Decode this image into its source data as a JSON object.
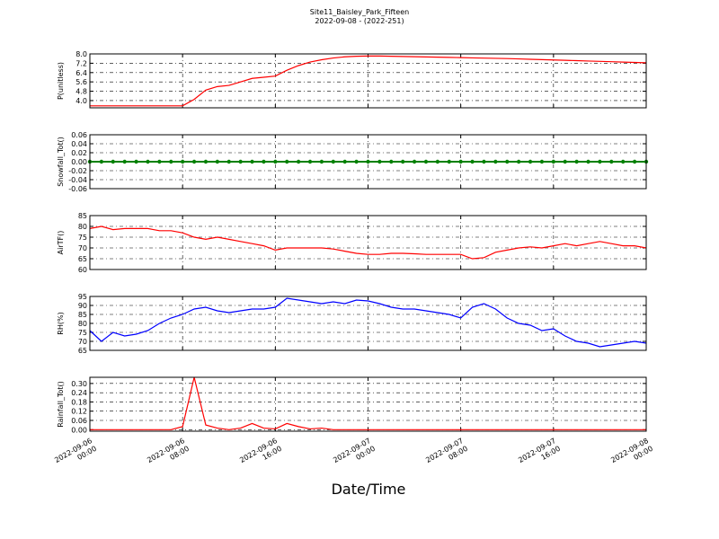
{
  "chart_data": [
    {
      "type": "line",
      "title": "Site11_Baisley_Park_Fifteen",
      "subtitle": "2022-09-08 - (2022-251)",
      "ylabel": "P(unitless)",
      "x": [
        "2022-09-06 00:00",
        "2022-09-06 01:00",
        "2022-09-06 02:00",
        "2022-09-06 03:00",
        "2022-09-06 04:00",
        "2022-09-06 05:00",
        "2022-09-06 06:00",
        "2022-09-06 07:00",
        "2022-09-06 08:00",
        "2022-09-06 09:00",
        "2022-09-06 10:00",
        "2022-09-06 11:00",
        "2022-09-06 12:00",
        "2022-09-06 13:00",
        "2022-09-06 14:00",
        "2022-09-06 15:00",
        "2022-09-06 16:00",
        "2022-09-06 17:00",
        "2022-09-06 18:00",
        "2022-09-06 19:00",
        "2022-09-06 20:00",
        "2022-09-06 21:00",
        "2022-09-06 22:00",
        "2022-09-06 23:00",
        "2022-09-07 00:00",
        "2022-09-07 01:00",
        "2022-09-07 02:00",
        "2022-09-07 03:00",
        "2022-09-07 04:00",
        "2022-09-07 05:00",
        "2022-09-07 06:00",
        "2022-09-07 07:00",
        "2022-09-07 08:00",
        "2022-09-07 09:00",
        "2022-09-07 10:00",
        "2022-09-07 11:00",
        "2022-09-07 12:00",
        "2022-09-07 13:00",
        "2022-09-07 14:00",
        "2022-09-07 15:00",
        "2022-09-07 16:00",
        "2022-09-07 17:00",
        "2022-09-07 18:00",
        "2022-09-07 19:00",
        "2022-09-07 20:00",
        "2022-09-07 21:00",
        "2022-09-07 22:00",
        "2022-09-07 23:00",
        "2022-09-08 00:00"
      ],
      "xlim": [
        "2022-09-06 00:00",
        "2022-09-08 00:00"
      ],
      "ylim": [
        3.38,
        8.0
      ],
      "yticks": [
        {
          "value": 4,
          "label": "4.0"
        },
        4.8,
        5.6,
        6.4,
        7.2,
        {
          "value": 8,
          "label": "8.0"
        }
      ],
      "grid": true,
      "color": "#ff0000",
      "values": [
        3.55,
        3.55,
        3.55,
        3.55,
        3.55,
        3.55,
        3.55,
        3.55,
        3.55,
        4.1,
        4.9,
        5.2,
        5.3,
        5.6,
        5.9,
        6.0,
        6.1,
        6.6,
        7.0,
        7.3,
        7.5,
        7.65,
        7.75,
        7.8,
        7.82,
        7.82,
        7.8,
        7.78,
        7.76,
        7.74,
        7.72,
        7.7,
        7.68,
        7.66,
        7.64,
        7.62,
        7.6,
        7.57,
        7.54,
        7.51,
        7.48,
        7.45,
        7.42,
        7.39,
        7.36,
        7.33,
        7.3,
        7.27,
        7.24
      ]
    },
    {
      "type": "line",
      "ylabel": "Snowfall_Tot()",
      "x": [
        "2022-09-06 00:00",
        "2022-09-06 01:00",
        "2022-09-06 02:00",
        "2022-09-06 03:00",
        "2022-09-06 04:00",
        "2022-09-06 05:00",
        "2022-09-06 06:00",
        "2022-09-06 07:00",
        "2022-09-06 08:00",
        "2022-09-06 09:00",
        "2022-09-06 10:00",
        "2022-09-06 11:00",
        "2022-09-06 12:00",
        "2022-09-06 13:00",
        "2022-09-06 14:00",
        "2022-09-06 15:00",
        "2022-09-06 16:00",
        "2022-09-06 17:00",
        "2022-09-06 18:00",
        "2022-09-06 19:00",
        "2022-09-06 20:00",
        "2022-09-06 21:00",
        "2022-09-06 22:00",
        "2022-09-06 23:00",
        "2022-09-07 00:00",
        "2022-09-07 01:00",
        "2022-09-07 02:00",
        "2022-09-07 03:00",
        "2022-09-07 04:00",
        "2022-09-07 05:00",
        "2022-09-07 06:00",
        "2022-09-07 07:00",
        "2022-09-07 08:00",
        "2022-09-07 09:00",
        "2022-09-07 10:00",
        "2022-09-07 11:00",
        "2022-09-07 12:00",
        "2022-09-07 13:00",
        "2022-09-07 14:00",
        "2022-09-07 15:00",
        "2022-09-07 16:00",
        "2022-09-07 17:00",
        "2022-09-07 18:00",
        "2022-09-07 19:00",
        "2022-09-07 20:00",
        "2022-09-07 21:00",
        "2022-09-07 22:00",
        "2022-09-07 23:00",
        "2022-09-08 00:00"
      ],
      "xlim": [
        "2022-09-06 00:00",
        "2022-09-08 00:00"
      ],
      "ylim": [
        -0.06,
        0.06
      ],
      "yticks": [
        -0.06,
        -0.04,
        -0.02,
        {
          "value": 0,
          "label": "0.00"
        },
        0.02,
        0.04,
        0.06
      ],
      "grid": true,
      "color": "#008000",
      "marker": "o",
      "values": [
        0,
        0,
        0,
        0,
        0,
        0,
        0,
        0,
        0,
        0,
        0,
        0,
        0,
        0,
        0,
        0,
        0,
        0,
        0,
        0,
        0,
        0,
        0,
        0,
        0,
        0,
        0,
        0,
        0,
        0,
        0,
        0,
        0,
        0,
        0,
        0,
        0,
        0,
        0,
        0,
        0,
        0,
        0,
        0,
        0,
        0,
        0,
        0,
        0
      ]
    },
    {
      "type": "line",
      "ylabel": "AirTF()",
      "x": [
        "2022-09-06 00:00",
        "2022-09-06 01:00",
        "2022-09-06 02:00",
        "2022-09-06 03:00",
        "2022-09-06 04:00",
        "2022-09-06 05:00",
        "2022-09-06 06:00",
        "2022-09-06 07:00",
        "2022-09-06 08:00",
        "2022-09-06 09:00",
        "2022-09-06 10:00",
        "2022-09-06 11:00",
        "2022-09-06 12:00",
        "2022-09-06 13:00",
        "2022-09-06 14:00",
        "2022-09-06 15:00",
        "2022-09-06 16:00",
        "2022-09-06 17:00",
        "2022-09-06 18:00",
        "2022-09-06 19:00",
        "2022-09-06 20:00",
        "2022-09-06 21:00",
        "2022-09-06 22:00",
        "2022-09-06 23:00",
        "2022-09-07 00:00",
        "2022-09-07 01:00",
        "2022-09-07 02:00",
        "2022-09-07 03:00",
        "2022-09-07 04:00",
        "2022-09-07 05:00",
        "2022-09-07 06:00",
        "2022-09-07 07:00",
        "2022-09-07 08:00",
        "2022-09-07 09:00",
        "2022-09-07 10:00",
        "2022-09-07 11:00",
        "2022-09-07 12:00",
        "2022-09-07 13:00",
        "2022-09-07 14:00",
        "2022-09-07 15:00",
        "2022-09-07 16:00",
        "2022-09-07 17:00",
        "2022-09-07 18:00",
        "2022-09-07 19:00",
        "2022-09-07 20:00",
        "2022-09-07 21:00",
        "2022-09-07 22:00",
        "2022-09-07 23:00",
        "2022-09-08 00:00"
      ],
      "xlim": [
        "2022-09-06 00:00",
        "2022-09-08 00:00"
      ],
      "ylim": [
        60,
        85
      ],
      "yticks": [
        60,
        65,
        70,
        75,
        80,
        85
      ],
      "grid": true,
      "color": "#ff0000",
      "values": [
        79,
        80,
        78.5,
        79,
        79,
        79,
        78,
        78,
        77,
        75,
        74,
        75,
        74,
        73,
        72,
        71,
        69,
        70,
        70,
        70,
        70,
        69.5,
        68.5,
        67.5,
        67,
        67,
        67.5,
        67.5,
        67.3,
        67,
        67,
        67,
        67,
        65,
        65.5,
        68,
        69,
        70,
        70.5,
        70,
        71,
        72,
        71,
        72,
        73,
        72,
        71,
        71,
        70
      ]
    },
    {
      "type": "line",
      "ylabel": "RH(%)",
      "x": [
        "2022-09-06 00:00",
        "2022-09-06 01:00",
        "2022-09-06 02:00",
        "2022-09-06 03:00",
        "2022-09-06 04:00",
        "2022-09-06 05:00",
        "2022-09-06 06:00",
        "2022-09-06 07:00",
        "2022-09-06 08:00",
        "2022-09-06 09:00",
        "2022-09-06 10:00",
        "2022-09-06 11:00",
        "2022-09-06 12:00",
        "2022-09-06 13:00",
        "2022-09-06 14:00",
        "2022-09-06 15:00",
        "2022-09-06 16:00",
        "2022-09-06 17:00",
        "2022-09-06 18:00",
        "2022-09-06 19:00",
        "2022-09-06 20:00",
        "2022-09-06 21:00",
        "2022-09-06 22:00",
        "2022-09-06 23:00",
        "2022-09-07 00:00",
        "2022-09-07 01:00",
        "2022-09-07 02:00",
        "2022-09-07 03:00",
        "2022-09-07 04:00",
        "2022-09-07 05:00",
        "2022-09-07 06:00",
        "2022-09-07 07:00",
        "2022-09-07 08:00",
        "2022-09-07 09:00",
        "2022-09-07 10:00",
        "2022-09-07 11:00",
        "2022-09-07 12:00",
        "2022-09-07 13:00",
        "2022-09-07 14:00",
        "2022-09-07 15:00",
        "2022-09-07 16:00",
        "2022-09-07 17:00",
        "2022-09-07 18:00",
        "2022-09-07 19:00",
        "2022-09-07 20:00",
        "2022-09-07 21:00",
        "2022-09-07 22:00",
        "2022-09-07 23:00",
        "2022-09-08 00:00"
      ],
      "xlim": [
        "2022-09-06 00:00",
        "2022-09-08 00:00"
      ],
      "ylim": [
        65,
        95
      ],
      "yticks": [
        65,
        70,
        75,
        80,
        85,
        90,
        95
      ],
      "grid": true,
      "color": "#0000ff",
      "values": [
        76,
        70,
        75,
        73,
        74,
        76,
        80,
        83,
        85,
        88,
        89,
        87,
        86,
        87,
        88,
        88,
        89,
        94,
        93,
        92,
        91,
        92,
        91,
        93,
        92.5,
        91,
        89,
        88,
        88,
        87,
        86,
        85,
        83,
        89,
        91,
        88,
        83,
        80,
        79,
        76,
        77,
        73,
        70,
        69,
        67,
        68,
        69,
        70,
        69
      ]
    },
    {
      "type": "line",
      "ylabel": "Rainfall_Tot()",
      "xlabel": "Date/Time",
      "x": [
        "2022-09-06 00:00",
        "2022-09-06 01:00",
        "2022-09-06 02:00",
        "2022-09-06 03:00",
        "2022-09-06 04:00",
        "2022-09-06 05:00",
        "2022-09-06 06:00",
        "2022-09-06 07:00",
        "2022-09-06 08:00",
        "2022-09-06 09:00",
        "2022-09-06 10:00",
        "2022-09-06 11:00",
        "2022-09-06 12:00",
        "2022-09-06 13:00",
        "2022-09-06 14:00",
        "2022-09-06 15:00",
        "2022-09-06 16:00",
        "2022-09-06 17:00",
        "2022-09-06 18:00",
        "2022-09-06 19:00",
        "2022-09-06 20:00",
        "2022-09-06 21:00",
        "2022-09-06 22:00",
        "2022-09-06 23:00",
        "2022-09-07 00:00",
        "2022-09-07 01:00",
        "2022-09-07 02:00",
        "2022-09-07 03:00",
        "2022-09-07 04:00",
        "2022-09-07 05:00",
        "2022-09-07 06:00",
        "2022-09-07 07:00",
        "2022-09-07 08:00",
        "2022-09-07 09:00",
        "2022-09-07 10:00",
        "2022-09-07 11:00",
        "2022-09-07 12:00",
        "2022-09-07 13:00",
        "2022-09-07 14:00",
        "2022-09-07 15:00",
        "2022-09-07 16:00",
        "2022-09-07 17:00",
        "2022-09-07 18:00",
        "2022-09-07 19:00",
        "2022-09-07 20:00",
        "2022-09-07 21:00",
        "2022-09-07 22:00",
        "2022-09-07 23:00",
        "2022-09-08 00:00"
      ],
      "xlim": [
        "2022-09-06 00:00",
        "2022-09-08 00:00"
      ],
      "xticks": [
        {
          "value": "2022-09-06 00:00",
          "label": "2022-09-06\n00:00"
        },
        {
          "value": "2022-09-06 08:00",
          "label": "2022-09-06\n08:00"
        },
        {
          "value": "2022-09-06 16:00",
          "label": "2022-09-06\n16:00"
        },
        {
          "value": "2022-09-07 00:00",
          "label": "2022-09-07\n00:00"
        },
        {
          "value": "2022-09-07 08:00",
          "label": "2022-09-07\n08:00"
        },
        {
          "value": "2022-09-07 16:00",
          "label": "2022-09-07\n16:00"
        },
        {
          "value": "2022-09-08 00:00",
          "label": "2022-09-08\n00:00"
        }
      ],
      "ylim": [
        -0.01,
        0.34
      ],
      "yticks": [
        {
          "value": 0,
          "label": "0.00"
        },
        0.06,
        0.12,
        0.18,
        0.24,
        {
          "value": 0.3,
          "label": "0.30"
        }
      ],
      "grid": true,
      "color": "#ff0000",
      "values": [
        0,
        0,
        0,
        0,
        0,
        0,
        0,
        0,
        0.02,
        0.34,
        0.03,
        0.01,
        0,
        0.01,
        0.04,
        0.01,
        0.005,
        0.04,
        0.02,
        0.005,
        0.01,
        0,
        0,
        0,
        0,
        0,
        0,
        0,
        0,
        0,
        0,
        0,
        0,
        0,
        0,
        0,
        0,
        0,
        0,
        0,
        0,
        0,
        0,
        0,
        0,
        0,
        0,
        0,
        0
      ]
    }
  ]
}
